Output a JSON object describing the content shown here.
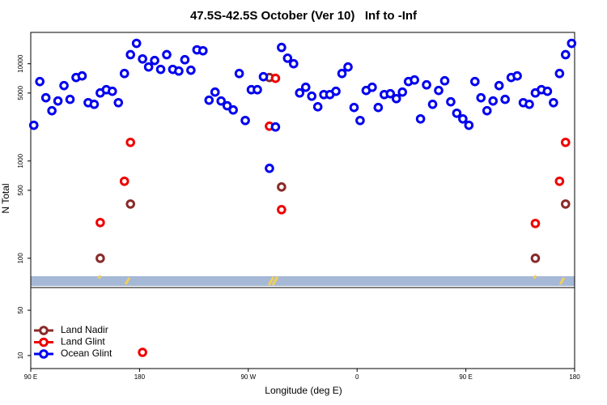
{
  "chart_data": [
    {
      "type": "scatter",
      "title": "47.5S-42.5S October (Ver 10)   Inf to -Inf",
      "ylabel": "N Total",
      "log": true,
      "xlim": [
        90,
        540
      ],
      "ylim": [
        50,
        21000
      ],
      "yticks": [
        100,
        500,
        1000,
        5000,
        10000
      ],
      "legend": "lower left",
      "series": [
        {
          "name": "Land Nadir",
          "color": "#8b2a2a",
          "x": [
            147.5,
            172.5,
            287.5,
            297.5,
            507.5,
            532.5
          ],
          "values": [
            100,
            361,
            7220,
            541,
            100,
            361
          ]
        },
        {
          "name": "Land Glint",
          "color": "#ee0000",
          "x": [
            147.5,
            167.5,
            172.5,
            287.5,
            292.5,
            297.5,
            507.5,
            527.5,
            532.5
          ],
          "values": [
            233,
            619,
            1555,
            2280,
            7080,
            316,
            228,
            619,
            1555
          ]
        },
        {
          "name": "Ocean Glint",
          "color": "#0000ee",
          "x": [
            92.5,
            97.5,
            102.5,
            107.5,
            112.5,
            117.5,
            122.5,
            127.5,
            132.5,
            137.5,
            142.5,
            147.5,
            152.5,
            157.5,
            162.5,
            167.5,
            172.5,
            177.5,
            182.5,
            187.5,
            192.5,
            197.5,
            202.5,
            207.5,
            212.5,
            217.5,
            222.5,
            227.5,
            232.5,
            237.5,
            242.5,
            247.5,
            252.5,
            257.5,
            262.5,
            267.5,
            272.5,
            277.5,
            282.5,
            287.5,
            292.5,
            297.5,
            302.5,
            307.5,
            312.5,
            317.5,
            322.5,
            327.5,
            332.5,
            337.5,
            342.5,
            347.5,
            352.5,
            357.5,
            362.5,
            367.5,
            372.5,
            377.5,
            382.5,
            387.5,
            392.5,
            397.5,
            402.5,
            407.5,
            412.5,
            417.5,
            422.5,
            427.5,
            432.5,
            437.5,
            442.5,
            447.5,
            452.5,
            457.5,
            462.5,
            467.5,
            472.5,
            477.5,
            482.5,
            487.5,
            492.5,
            497.5,
            502.5,
            507.5,
            512.5,
            517.5,
            522.5,
            527.5,
            532.5,
            537.5
          ],
          "values": [
            2330,
            6560,
            4470,
            3290,
            4140,
            5960,
            4300,
            7220,
            7500,
            3980,
            3830,
            5010,
            5410,
            5210,
            3980,
            7940,
            12400,
            16200,
            11200,
            9260,
            10800,
            8750,
            12400,
            8750,
            8410,
            11000,
            8580,
            13900,
            13600,
            4220,
            5110,
            4140,
            3700,
            3350,
            7940,
            2610,
            5410,
            5410,
            7360,
            841,
            2240,
            14700,
            11400,
            10000,
            5010,
            5730,
            4640,
            3610,
            4820,
            4820,
            5210,
            7940,
            9260,
            3550,
            2610,
            5310,
            5730,
            3550,
            4820,
            4920,
            4380,
            5110,
            6560,
            6810,
            2710,
            6070,
            3830,
            5310,
            6680,
            4060,
            3100,
            2710,
            2330,
            6560,
            4470,
            3290,
            4140,
            5960,
            4300,
            7220,
            7500,
            3980,
            3830,
            5010,
            5410,
            5210,
            3980,
            7940,
            12400,
            16200
          ]
        }
      ]
    },
    {
      "type": "scatter",
      "xlabel": "Longitude (deg E)",
      "log": true,
      "xlim": [
        90,
        540
      ],
      "ylim": [
        6.3,
        112
      ],
      "yticks": [
        10,
        50
      ],
      "xticks": [
        {
          "value": 90,
          "label": "90 E"
        },
        180,
        {
          "value": 270,
          "label": "90 W"
        },
        {
          "value": 360,
          "label": "0"
        },
        {
          "value": 450,
          "label": "90 E"
        },
        {
          "value": 540,
          "label": "180"
        }
      ],
      "series": [
        {
          "color": "#ee0000",
          "x": [
            182.5
          ],
          "values": [
            11.2
          ]
        }
      ]
    }
  ]
}
